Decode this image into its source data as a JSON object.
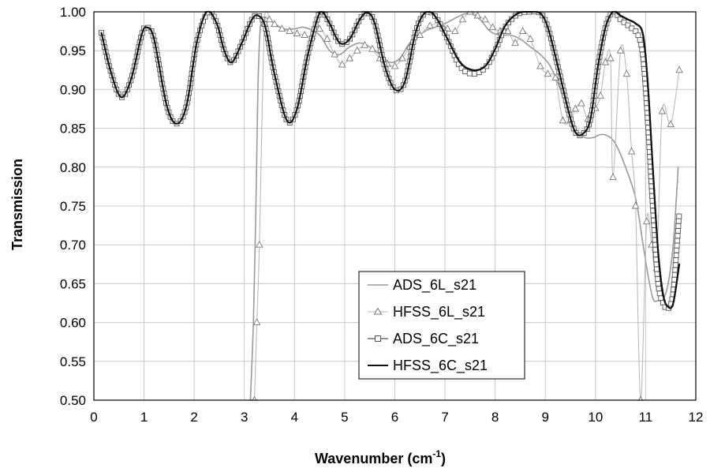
{
  "chart_data": {
    "type": "line",
    "title": "",
    "xlabel": "Wavenumber (cm",
    "xlabel_sup": "-1",
    "xlabel_close": ")",
    "ylabel": "Transmission",
    "xlim": [
      0,
      12
    ],
    "ylim": [
      0.5,
      1.0
    ],
    "x_ticks": [
      0,
      1,
      2,
      3,
      4,
      5,
      6,
      7,
      8,
      9,
      10,
      11,
      12
    ],
    "y_ticks": [
      "0.50",
      "0.55",
      "0.60",
      "0.65",
      "0.70",
      "0.75",
      "0.80",
      "0.85",
      "0.90",
      "0.95",
      "1.00"
    ],
    "grid": true,
    "legend_position": "lower-center",
    "series": [
      {
        "name": "ADS_6L_s21",
        "color": "#9a9a9a",
        "marker": "none",
        "points": [
          [
            3.12,
            0.5
          ],
          [
            3.18,
            0.6
          ],
          [
            3.23,
            0.75
          ],
          [
            3.27,
            0.9
          ],
          [
            3.3,
            0.96
          ],
          [
            3.33,
            0.985
          ],
          [
            3.4,
            0.993
          ],
          [
            3.5,
            0.99
          ],
          [
            3.6,
            0.985
          ],
          [
            3.8,
            0.978
          ],
          [
            4.0,
            0.978
          ],
          [
            4.2,
            0.98
          ],
          [
            4.5,
            0.97
          ],
          [
            4.7,
            0.95
          ],
          [
            4.9,
            0.945
          ],
          [
            5.1,
            0.955
          ],
          [
            5.3,
            0.96
          ],
          [
            5.5,
            0.955
          ],
          [
            5.7,
            0.945
          ],
          [
            5.9,
            0.935
          ],
          [
            6.1,
            0.94
          ],
          [
            6.3,
            0.96
          ],
          [
            6.6,
            0.975
          ],
          [
            7.0,
            0.985
          ],
          [
            7.3,
            0.995
          ],
          [
            7.5,
            0.998
          ],
          [
            7.7,
            0.99
          ],
          [
            7.9,
            0.975
          ],
          [
            8.1,
            0.97
          ],
          [
            8.3,
            0.97
          ],
          [
            8.5,
            0.965
          ],
          [
            8.7,
            0.955
          ],
          [
            8.9,
            0.945
          ],
          [
            9.1,
            0.93
          ],
          [
            9.3,
            0.9
          ],
          [
            9.5,
            0.865
          ],
          [
            9.65,
            0.845
          ],
          [
            9.8,
            0.838
          ],
          [
            9.95,
            0.838
          ],
          [
            10.1,
            0.842
          ],
          [
            10.25,
            0.84
          ],
          [
            10.4,
            0.83
          ],
          [
            10.6,
            0.8
          ],
          [
            10.8,
            0.76
          ],
          [
            10.95,
            0.7
          ],
          [
            11.05,
            0.66
          ],
          [
            11.15,
            0.63
          ],
          [
            11.25,
            0.628
          ],
          [
            11.35,
            0.63
          ],
          [
            11.45,
            0.65
          ],
          [
            11.55,
            0.7
          ],
          [
            11.65,
            0.8
          ]
        ]
      },
      {
        "name": "HFSS_6L_s21",
        "color": "#b5b5b5",
        "marker": "triangle",
        "points": [
          [
            3.2,
            0.5
          ],
          [
            3.25,
            0.6
          ],
          [
            3.3,
            0.7
          ],
          [
            3.4,
            0.985
          ],
          [
            3.5,
            0.99
          ],
          [
            3.6,
            0.984
          ],
          [
            3.75,
            0.978
          ],
          [
            3.9,
            0.975
          ],
          [
            4.05,
            0.972
          ],
          [
            4.2,
            0.97
          ],
          [
            4.35,
            0.968
          ],
          [
            4.5,
            0.978
          ],
          [
            4.65,
            0.965
          ],
          [
            4.8,
            0.945
          ],
          [
            4.95,
            0.932
          ],
          [
            5.1,
            0.94
          ],
          [
            5.25,
            0.95
          ],
          [
            5.4,
            0.957
          ],
          [
            5.55,
            0.952
          ],
          [
            5.7,
            0.94
          ],
          [
            5.85,
            0.933
          ],
          [
            6.0,
            0.93
          ],
          [
            6.15,
            0.94
          ],
          [
            6.3,
            0.955
          ],
          [
            6.5,
            0.97
          ],
          [
            6.7,
            0.982
          ],
          [
            6.9,
            0.985
          ],
          [
            7.05,
            0.978
          ],
          [
            7.2,
            0.975
          ],
          [
            7.35,
            0.99
          ],
          [
            7.5,
            1.0
          ],
          [
            7.65,
            0.995
          ],
          [
            7.8,
            0.99
          ],
          [
            7.95,
            0.98
          ],
          [
            8.1,
            0.975
          ],
          [
            8.25,
            0.975
          ],
          [
            8.4,
            0.96
          ],
          [
            8.55,
            0.975
          ],
          [
            8.7,
            0.965
          ],
          [
            8.9,
            0.93
          ],
          [
            9.05,
            0.92
          ],
          [
            9.2,
            0.915
          ],
          [
            9.35,
            0.86
          ],
          [
            9.5,
            0.86
          ],
          [
            9.6,
            0.875
          ],
          [
            9.72,
            0.882
          ],
          [
            9.85,
            0.862
          ],
          [
            10.0,
            0.876
          ],
          [
            10.1,
            0.892
          ],
          [
            10.2,
            0.935
          ],
          [
            10.3,
            0.94
          ],
          [
            10.35,
            0.787
          ],
          [
            10.5,
            0.95
          ],
          [
            10.62,
            0.92
          ],
          [
            10.72,
            0.82
          ],
          [
            10.8,
            0.75
          ],
          [
            10.9,
            0.5
          ],
          [
            11.02,
            0.73
          ],
          [
            11.12,
            0.7
          ],
          [
            11.22,
            0.67
          ],
          [
            11.33,
            0.872
          ],
          [
            11.5,
            0.855
          ],
          [
            11.67,
            0.925
          ]
        ]
      },
      {
        "name": "ADS_6C_s21",
        "color": "#555555",
        "marker": "square",
        "points": [
          [
            0.15,
            0.973
          ],
          [
            0.35,
            0.92
          ],
          [
            0.55,
            0.89
          ],
          [
            0.75,
            0.915
          ],
          [
            0.95,
            0.97
          ],
          [
            1.05,
            0.98
          ],
          [
            1.2,
            0.965
          ],
          [
            1.45,
            0.88
          ],
          [
            1.65,
            0.856
          ],
          [
            1.85,
            0.88
          ],
          [
            2.05,
            0.96
          ],
          [
            2.28,
            1.0
          ],
          [
            2.45,
            0.985
          ],
          [
            2.6,
            0.95
          ],
          [
            2.75,
            0.935
          ],
          [
            2.95,
            0.96
          ],
          [
            3.15,
            0.99
          ],
          [
            3.28,
            0.995
          ],
          [
            3.42,
            0.98
          ],
          [
            3.6,
            0.92
          ],
          [
            3.85,
            0.86
          ],
          [
            4.05,
            0.875
          ],
          [
            4.25,
            0.94
          ],
          [
            4.45,
            0.99
          ],
          [
            4.55,
            1.0
          ],
          [
            4.7,
            0.985
          ],
          [
            4.9,
            0.96
          ],
          [
            5.1,
            0.965
          ],
          [
            5.3,
            0.99
          ],
          [
            5.45,
            0.999
          ],
          [
            5.6,
            0.985
          ],
          [
            5.8,
            0.93
          ],
          [
            6.0,
            0.9
          ],
          [
            6.2,
            0.91
          ],
          [
            6.4,
            0.97
          ],
          [
            6.55,
            0.995
          ],
          [
            6.7,
            1.0
          ],
          [
            6.85,
            0.99
          ],
          [
            7.05,
            0.965
          ],
          [
            7.3,
            0.93
          ],
          [
            7.55,
            0.92
          ],
          [
            7.8,
            0.928
          ],
          [
            8.0,
            0.95
          ],
          [
            8.2,
            0.98
          ],
          [
            8.45,
            0.997
          ],
          [
            8.7,
            1.0
          ],
          [
            8.9,
            0.998
          ],
          [
            9.05,
            0.98
          ],
          [
            9.25,
            0.93
          ],
          [
            9.45,
            0.875
          ],
          [
            9.6,
            0.845
          ],
          [
            9.75,
            0.843
          ],
          [
            9.9,
            0.862
          ],
          [
            10.05,
            0.93
          ],
          [
            10.2,
            0.98
          ],
          [
            10.35,
            1.0
          ],
          [
            10.5,
            0.99
          ],
          [
            10.6,
            0.985
          ],
          [
            10.7,
            0.98
          ],
          [
            10.85,
            0.97
          ],
          [
            10.95,
            0.94
          ],
          [
            11.05,
            0.85
          ],
          [
            11.15,
            0.74
          ],
          [
            11.25,
            0.65
          ],
          [
            11.35,
            0.625
          ],
          [
            11.45,
            0.618
          ],
          [
            11.55,
            0.64
          ],
          [
            11.67,
            0.74
          ]
        ]
      },
      {
        "name": "HFSS_6C_s21",
        "color": "#111111",
        "marker": "none",
        "points": [
          [
            0.15,
            0.973
          ],
          [
            0.35,
            0.92
          ],
          [
            0.55,
            0.89
          ],
          [
            0.75,
            0.915
          ],
          [
            0.95,
            0.97
          ],
          [
            1.05,
            0.98
          ],
          [
            1.2,
            0.965
          ],
          [
            1.45,
            0.88
          ],
          [
            1.65,
            0.856
          ],
          [
            1.85,
            0.88
          ],
          [
            2.05,
            0.96
          ],
          [
            2.25,
            1.0
          ],
          [
            2.45,
            0.985
          ],
          [
            2.6,
            0.95
          ],
          [
            2.75,
            0.935
          ],
          [
            2.95,
            0.96
          ],
          [
            3.15,
            0.99
          ],
          [
            3.28,
            0.995
          ],
          [
            3.42,
            0.98
          ],
          [
            3.6,
            0.92
          ],
          [
            3.85,
            0.86
          ],
          [
            4.05,
            0.875
          ],
          [
            4.25,
            0.94
          ],
          [
            4.45,
            0.99
          ],
          [
            4.55,
            1.0
          ],
          [
            4.7,
            0.985
          ],
          [
            4.9,
            0.96
          ],
          [
            5.1,
            0.965
          ],
          [
            5.3,
            0.99
          ],
          [
            5.45,
            0.999
          ],
          [
            5.6,
            0.985
          ],
          [
            5.8,
            0.93
          ],
          [
            6.0,
            0.9
          ],
          [
            6.2,
            0.91
          ],
          [
            6.4,
            0.97
          ],
          [
            6.55,
            0.995
          ],
          [
            6.7,
            1.0
          ],
          [
            6.85,
            0.99
          ],
          [
            7.05,
            0.965
          ],
          [
            7.3,
            0.935
          ],
          [
            7.55,
            0.925
          ],
          [
            7.8,
            0.93
          ],
          [
            8.0,
            0.952
          ],
          [
            8.2,
            0.982
          ],
          [
            8.45,
            0.998
          ],
          [
            8.7,
            1.0
          ],
          [
            8.9,
            0.998
          ],
          [
            9.05,
            0.98
          ],
          [
            9.25,
            0.93
          ],
          [
            9.45,
            0.875
          ],
          [
            9.6,
            0.845
          ],
          [
            9.75,
            0.843
          ],
          [
            9.9,
            0.862
          ],
          [
            10.05,
            0.93
          ],
          [
            10.2,
            0.98
          ],
          [
            10.35,
            1.0
          ],
          [
            10.5,
            0.995
          ],
          [
            10.65,
            0.99
          ],
          [
            10.8,
            0.985
          ],
          [
            10.95,
            0.97
          ],
          [
            11.05,
            0.9
          ],
          [
            11.15,
            0.79
          ],
          [
            11.25,
            0.69
          ],
          [
            11.35,
            0.635
          ],
          [
            11.45,
            0.62
          ],
          [
            11.55,
            0.625
          ],
          [
            11.67,
            0.675
          ]
        ]
      }
    ]
  }
}
